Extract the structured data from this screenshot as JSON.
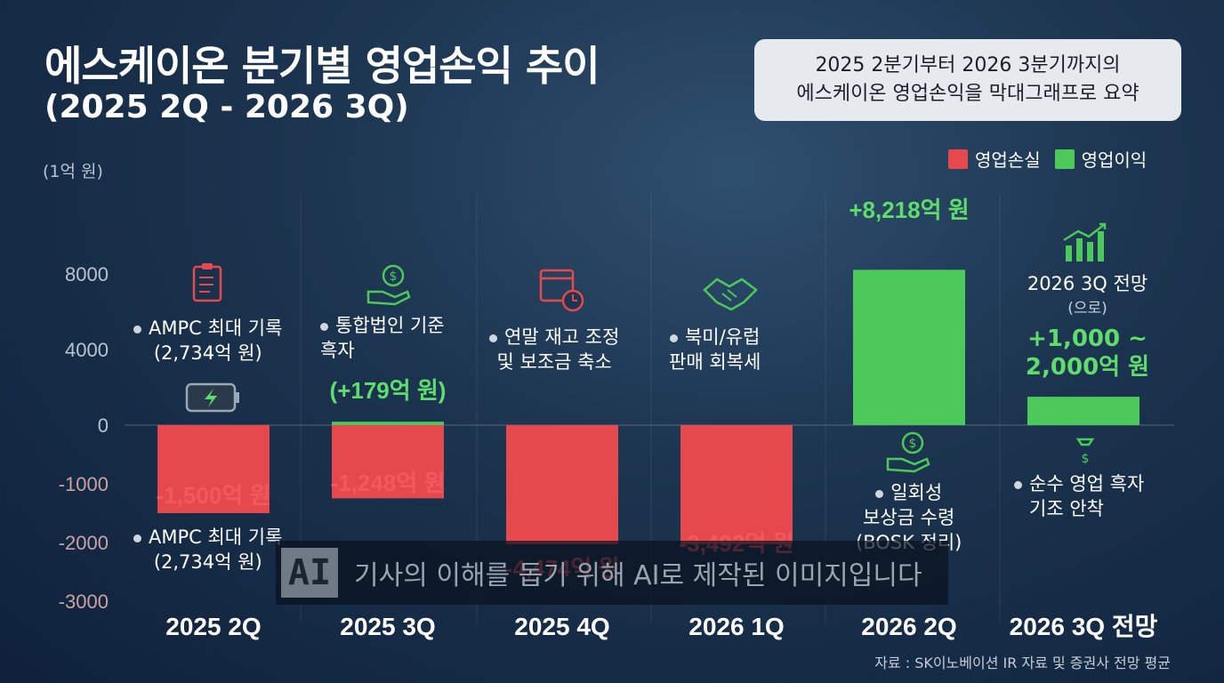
{
  "title": "에스케이온 분기별 영업손익 추이",
  "subtitle": "(2025 2Q - 2026 3Q)",
  "summary_box": [
    "2025 2분기부터 2026 3분기까지의",
    "에스케이온 영업손익을 막대그래프로 요약"
  ],
  "unit_label": "(1억 원)",
  "legend": [
    {
      "label": "영업손실",
      "color": "#e5484d"
    },
    {
      "label": "영업이익",
      "color": "#4cc95a"
    }
  ],
  "notes": {
    "q2_2025_top": [
      "AMPC 최대 기록",
      "(2,734억 원)"
    ],
    "q2_2025_bottom": [
      "AMPC 최대 기록",
      "(2,734억 원)"
    ],
    "q3_2025": [
      "통합법인 기준",
      "흑자"
    ],
    "q4_2025": [
      "연말 재고 조정",
      "및 보조금 축소"
    ],
    "q1_2026": [
      "북미/유럽",
      "판매 회복세"
    ],
    "q2_2026": [
      "일회성",
      "보상금 수령",
      "(BOSK 정리)"
    ],
    "q3_2026_forecast_title": "2026 3Q 전망",
    "q3_2026_forecast_sub": "(으로)",
    "q3_2026_forecast_value": [
      "+1,000 ~",
      "2,000억 원"
    ],
    "q3_2026_bottom": [
      "순수 영업 흑자",
      "기조 안착"
    ]
  },
  "watermark": {
    "logo": "AI",
    "text": "기사의 이해를 돕기 위해 AI로 제작된 이미지입니다"
  },
  "source": "자료 : SK이노베이션 IR 자료 및 증권사 전망 평균",
  "chart_data": {
    "type": "bar",
    "categories": [
      "2025 2Q",
      "2025 3Q",
      "2025 4Q",
      "2026 1Q",
      "2026 2Q",
      "2026 3Q 전망"
    ],
    "series": [
      {
        "name": "영업손실",
        "values": [
          -1500,
          -1248,
          -4474,
          -3492,
          null,
          null
        ]
      },
      {
        "name": "영업이익",
        "values": [
          null,
          179,
          null,
          null,
          8218,
          1500
        ]
      }
    ],
    "data_labels": [
      "-1,500억 원",
      "-1,248억 원",
      "(+179억 원)",
      "-4,474억 원",
      "-3,492억 원",
      "+8,218억 원"
    ],
    "y_ticks": [
      8000,
      4000,
      0,
      -1000,
      -2000,
      -3000
    ],
    "colors": {
      "loss": "#e5484d",
      "profit": "#4cc95a"
    }
  }
}
